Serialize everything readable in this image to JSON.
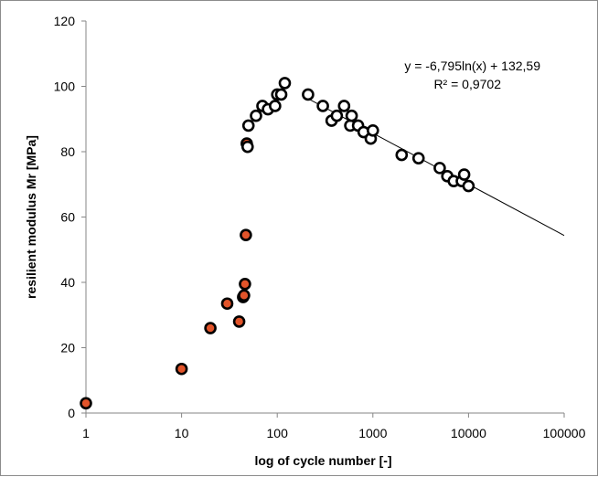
{
  "chart_data": {
    "type": "scatter",
    "xlabel": "log of cycle number [-]",
    "ylabel": "resilient modulus Mr [MPa]",
    "x_scale": "log",
    "xlim": [
      1,
      100000
    ],
    "ylim": [
      0,
      120
    ],
    "x_ticks": [
      1,
      10,
      100,
      1000,
      10000,
      100000
    ],
    "x_tick_labels": [
      "1",
      "10",
      "100",
      "1000",
      "10000",
      "100000"
    ],
    "y_ticks": [
      0,
      20,
      40,
      60,
      80,
      100,
      120
    ],
    "y_tick_labels": [
      "0",
      "20",
      "40",
      "60",
      "80",
      "100",
      "120"
    ],
    "grid": false,
    "legend": "none",
    "series": [
      {
        "marker": "filled-circle",
        "color": "#e2542a",
        "points": [
          {
            "x": 1,
            "y": 3
          },
          {
            "x": 10,
            "y": 13.5
          },
          {
            "x": 20,
            "y": 26
          },
          {
            "x": 30,
            "y": 33.5
          },
          {
            "x": 40,
            "y": 28
          },
          {
            "x": 44,
            "y": 35.5
          },
          {
            "x": 45,
            "y": 36
          },
          {
            "x": 46,
            "y": 39.5
          },
          {
            "x": 47,
            "y": 54.5
          },
          {
            "x": 48,
            "y": 82.5
          }
        ]
      },
      {
        "marker": "open-circle",
        "color": "#000000",
        "points": [
          {
            "x": 49,
            "y": 81.5
          },
          {
            "x": 50,
            "y": 88
          },
          {
            "x": 60,
            "y": 91
          },
          {
            "x": 70,
            "y": 94
          },
          {
            "x": 80,
            "y": 93
          },
          {
            "x": 95,
            "y": 94
          },
          {
            "x": 100,
            "y": 97.5
          },
          {
            "x": 110,
            "y": 97.5
          },
          {
            "x": 120,
            "y": 101
          },
          {
            "x": 210,
            "y": 97.5
          },
          {
            "x": 300,
            "y": 94
          },
          {
            "x": 370,
            "y": 89.5
          },
          {
            "x": 420,
            "y": 91
          },
          {
            "x": 500,
            "y": 94
          },
          {
            "x": 580,
            "y": 88
          },
          {
            "x": 600,
            "y": 91
          },
          {
            "x": 700,
            "y": 88
          },
          {
            "x": 800,
            "y": 86
          },
          {
            "x": 950,
            "y": 84
          },
          {
            "x": 1000,
            "y": 86.5
          },
          {
            "x": 2000,
            "y": 79
          },
          {
            "x": 3000,
            "y": 78
          },
          {
            "x": 5000,
            "y": 75
          },
          {
            "x": 6000,
            "y": 72.5
          },
          {
            "x": 7000,
            "y": 71
          },
          {
            "x": 8500,
            "y": 71
          },
          {
            "x": 9000,
            "y": 73
          },
          {
            "x": 10000,
            "y": 69.5
          }
        ]
      }
    ],
    "trendline": {
      "type": "logarithmic",
      "a": -6.795,
      "b": 132.59,
      "x_from": 210,
      "x_to": 100000,
      "color": "#000000"
    },
    "annotations": [
      "y = -6,795ln(x) + 132,59",
      "R² = 0,9702"
    ]
  }
}
